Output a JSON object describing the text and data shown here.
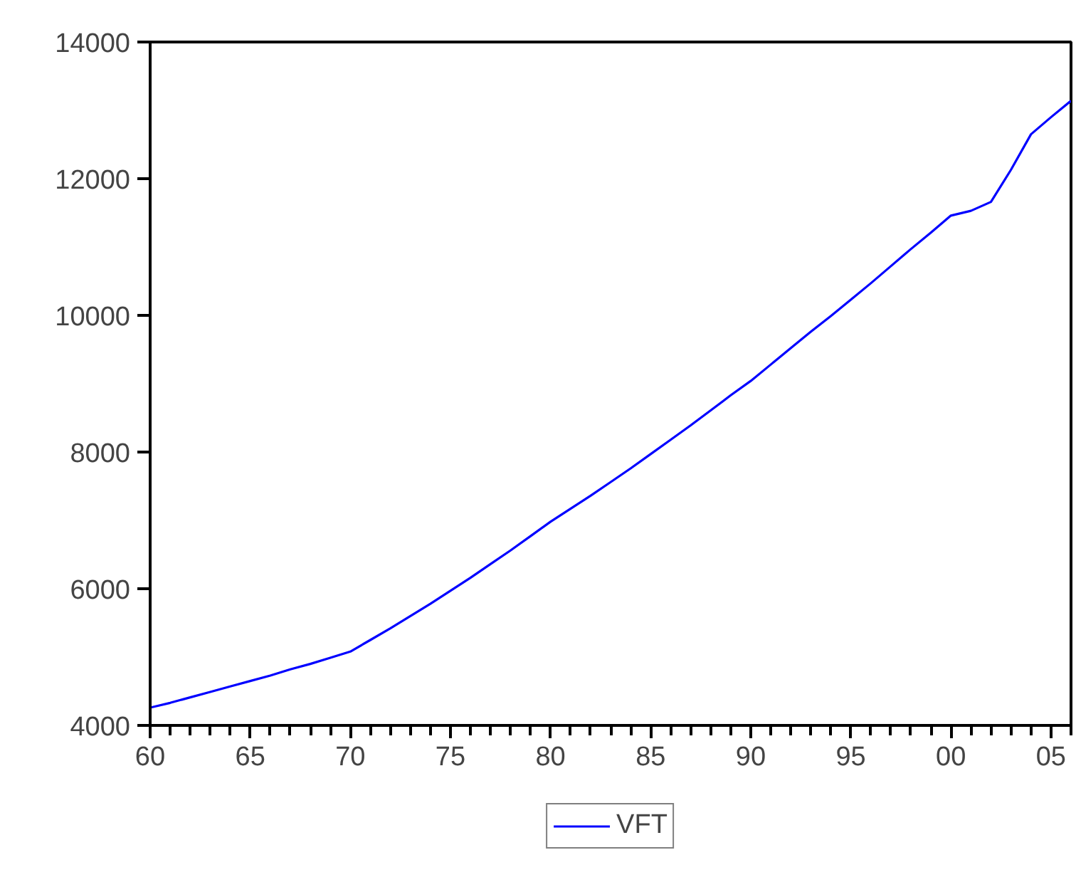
{
  "chart_data": {
    "type": "line",
    "x": [
      1960,
      1961,
      1962,
      1963,
      1964,
      1965,
      1966,
      1967,
      1968,
      1969,
      1970,
      1971,
      1972,
      1973,
      1974,
      1975,
      1976,
      1977,
      1978,
      1979,
      1980,
      1981,
      1982,
      1983,
      1984,
      1985,
      1986,
      1987,
      1988,
      1989,
      1990,
      1991,
      1992,
      1993,
      1994,
      1995,
      1996,
      1997,
      1998,
      1999,
      2000,
      2001,
      2002,
      2003,
      2004,
      2005,
      2006
    ],
    "series": [
      {
        "name": "VFT",
        "color": "#0000ff",
        "values": [
          4260,
          4330,
          4410,
          4490,
          4570,
          4650,
          4730,
          4820,
          4900,
          4990,
          5080,
          5250,
          5420,
          5600,
          5780,
          5970,
          6160,
          6360,
          6560,
          6770,
          6980,
          7170,
          7360,
          7560,
          7760,
          7970,
          8180,
          8390,
          8610,
          8830,
          9040,
          9280,
          9520,
          9760,
          9990,
          10230,
          10470,
          10720,
          10970,
          11210,
          11460,
          11530,
          11660,
          12130,
          12650,
          12900,
          13140
        ]
      }
    ],
    "xlim": [
      1960,
      2006
    ],
    "ylim": [
      4000,
      14000
    ],
    "xticks": [
      {
        "value": 1960,
        "label": "60"
      },
      {
        "value": 1965,
        "label": "65"
      },
      {
        "value": 1970,
        "label": "70"
      },
      {
        "value": 1975,
        "label": "75"
      },
      {
        "value": 1980,
        "label": "80"
      },
      {
        "value": 1985,
        "label": "85"
      },
      {
        "value": 1990,
        "label": "90"
      },
      {
        "value": 1995,
        "label": "95"
      },
      {
        "value": 2000,
        "label": "00"
      },
      {
        "value": 2005,
        "label": "05"
      }
    ],
    "yticks": [
      4000,
      6000,
      8000,
      10000,
      12000,
      14000
    ],
    "grid": false,
    "legend": "bottom",
    "marker": "none",
    "line_style": "solid"
  }
}
